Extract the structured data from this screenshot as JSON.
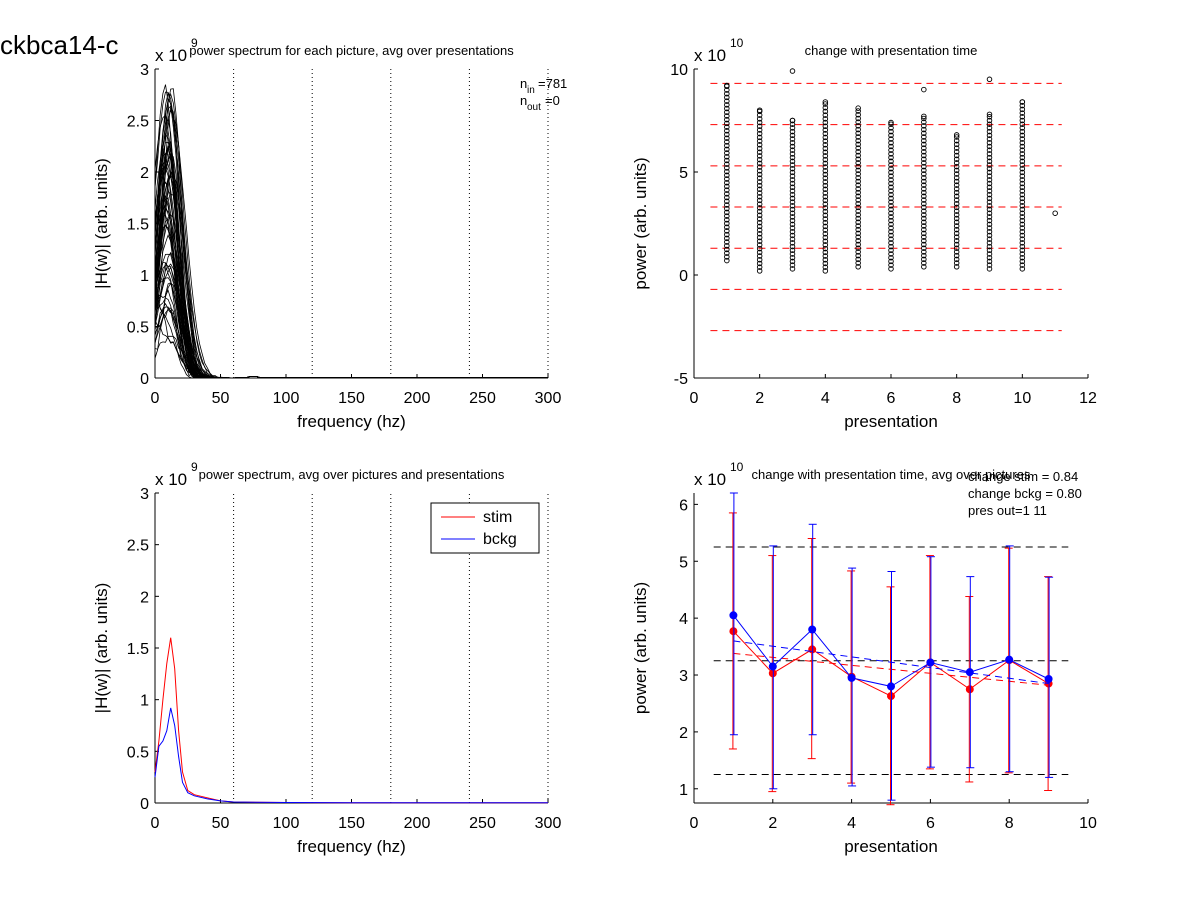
{
  "figure": {
    "title": "ckbca14-c",
    "colors": {
      "stim": "#ff0000",
      "bckg": "#0000ff",
      "axis": "#000000",
      "ref_red": "#ff0000",
      "ref_black": "#000000"
    }
  },
  "chart_data": [
    {
      "id": "tl",
      "type": "line",
      "title": "power spectrum for each picture, avg over presentations",
      "exponent_label": "x 10",
      "exponent": "9",
      "xlabel": "frequency (hz)",
      "ylabel": "|H(w)| (arb. units)",
      "xlim": [
        0,
        300
      ],
      "ylim": [
        0,
        3
      ],
      "xticks": [
        0,
        50,
        100,
        150,
        200,
        250,
        300
      ],
      "yticks": [
        0,
        0.5,
        1,
        1.5,
        2,
        2.5,
        3
      ],
      "ytick_labels": [
        "0",
        "0.5",
        "1",
        "1.5",
        "2",
        "2.5",
        "3"
      ],
      "vlines": [
        60,
        120,
        180,
        240,
        300
      ],
      "annotation": {
        "n_in": "781",
        "n_out": "0"
      },
      "grid": false,
      "peak_freq": 10,
      "peak_range": [
        0.35,
        2.85
      ],
      "num_traces": 781
    },
    {
      "id": "tr",
      "type": "scatter",
      "title": "change with presentation time",
      "exponent_label": "x 10",
      "exponent": "10",
      "xlabel": "presentation",
      "ylabel": "power (arb. units)",
      "xlim": [
        0,
        12
      ],
      "ylim": [
        -5,
        10
      ],
      "xticks": [
        0,
        2,
        4,
        6,
        8,
        10,
        12
      ],
      "yticks": [
        -5,
        0,
        5,
        10
      ],
      "ref_lines": [
        9.3,
        7.3,
        5.3,
        3.3,
        1.3,
        -0.7,
        -2.7
      ],
      "columns": [
        {
          "x": 1,
          "min": 0.7,
          "max": 9.2
        },
        {
          "x": 2,
          "min": 0.2,
          "max": 8.0
        },
        {
          "x": 3,
          "min": 0.3,
          "max": 7.5,
          "extra": [
            9.9
          ]
        },
        {
          "x": 4,
          "min": 0.2,
          "max": 8.4
        },
        {
          "x": 5,
          "min": 0.4,
          "max": 8.1
        },
        {
          "x": 6,
          "min": 0.3,
          "max": 7.4
        },
        {
          "x": 7,
          "min": 0.4,
          "max": 7.7,
          "extra": [
            9.0
          ]
        },
        {
          "x": 8,
          "min": 0.4,
          "max": 6.8
        },
        {
          "x": 9,
          "min": 0.3,
          "max": 7.8,
          "extra": [
            9.5
          ]
        },
        {
          "x": 10,
          "min": 0.3,
          "max": 8.4
        },
        {
          "x": 11,
          "min": 3.0,
          "max": 3.0
        }
      ],
      "grid": false
    },
    {
      "id": "bl",
      "type": "line",
      "title": "power spectrum, avg over pictures and presentations",
      "exponent_label": "x 10",
      "exponent": "9",
      "xlabel": "frequency (hz)",
      "ylabel": "|H(w)| (arb. units)",
      "xlim": [
        0,
        300
      ],
      "ylim": [
        0,
        3
      ],
      "xticks": [
        0,
        50,
        100,
        150,
        200,
        250,
        300
      ],
      "yticks": [
        0,
        0.5,
        1,
        1.5,
        2,
        2.5,
        3
      ],
      "ytick_labels": [
        "0",
        "0.5",
        "1",
        "1.5",
        "2",
        "2.5",
        "3"
      ],
      "vlines": [
        60,
        120,
        180,
        240,
        300
      ],
      "legend": {
        "position": "top-right",
        "entries": [
          "stim",
          "bckg"
        ]
      },
      "series": [
        {
          "name": "stim",
          "x": [
            0,
            3,
            6,
            9,
            12,
            15,
            18,
            21,
            25,
            30,
            40,
            50,
            60,
            100,
            150,
            200,
            250,
            300
          ],
          "values": [
            0.3,
            0.6,
            1.0,
            1.35,
            1.6,
            1.3,
            0.7,
            0.3,
            0.12,
            0.08,
            0.05,
            0.02,
            0.01,
            0.005,
            0.003,
            0.002,
            0.002,
            0.002
          ]
        },
        {
          "name": "bckg",
          "x": [
            0,
            3,
            6,
            9,
            12,
            15,
            18,
            21,
            25,
            30,
            40,
            50,
            60,
            100,
            150,
            200,
            250,
            300
          ],
          "values": [
            0.25,
            0.55,
            0.6,
            0.7,
            0.92,
            0.75,
            0.45,
            0.2,
            0.1,
            0.07,
            0.04,
            0.02,
            0.01,
            0.005,
            0.003,
            0.002,
            0.002,
            0.002
          ]
        }
      ],
      "grid": false
    },
    {
      "id": "br",
      "type": "line",
      "title": "change with presentation time, avg over pictures",
      "exponent_label": "x 10",
      "exponent": "10",
      "xlabel": "presentation",
      "ylabel": "power (arb. units)",
      "xlim": [
        0,
        10
      ],
      "ylim": [
        0.75,
        6.2
      ],
      "xticks": [
        0,
        2,
        4,
        6,
        8,
        10
      ],
      "yticks": [
        1,
        2,
        3,
        4,
        5,
        6
      ],
      "ref_lines": [
        5.25,
        3.25,
        1.25
      ],
      "stats_text": [
        "change stim = 0.84",
        "change bckg = 0.80",
        "pres out=1 11"
      ],
      "series": [
        {
          "name": "stim",
          "x": [
            1,
            2,
            3,
            4,
            5,
            6,
            7,
            8,
            9
          ],
          "values": [
            3.77,
            3.03,
            3.45,
            2.97,
            2.63,
            3.22,
            2.75,
            3.26,
            2.85
          ],
          "err_lo": [
            1.7,
            0.95,
            1.53,
            1.1,
            0.72,
            1.35,
            1.12,
            1.28,
            0.97
          ],
          "err_hi": [
            5.85,
            5.1,
            5.4,
            4.83,
            4.55,
            5.1,
            4.38,
            5.23,
            4.73
          ],
          "trend": [
            3.38,
            2.82
          ]
        },
        {
          "name": "bckg",
          "x": [
            1,
            2,
            3,
            4,
            5,
            6,
            7,
            8,
            9
          ],
          "values": [
            4.05,
            3.15,
            3.8,
            2.95,
            2.8,
            3.22,
            3.05,
            3.27,
            2.93
          ],
          "err_lo": [
            1.95,
            1.0,
            1.95,
            1.05,
            0.8,
            1.38,
            1.37,
            1.3,
            1.2
          ],
          "err_hi": [
            6.2,
            5.27,
            5.65,
            4.88,
            4.82,
            5.08,
            4.73,
            5.27,
            4.72
          ],
          "trend": [
            3.6,
            2.85
          ]
        }
      ],
      "grid": false
    }
  ]
}
